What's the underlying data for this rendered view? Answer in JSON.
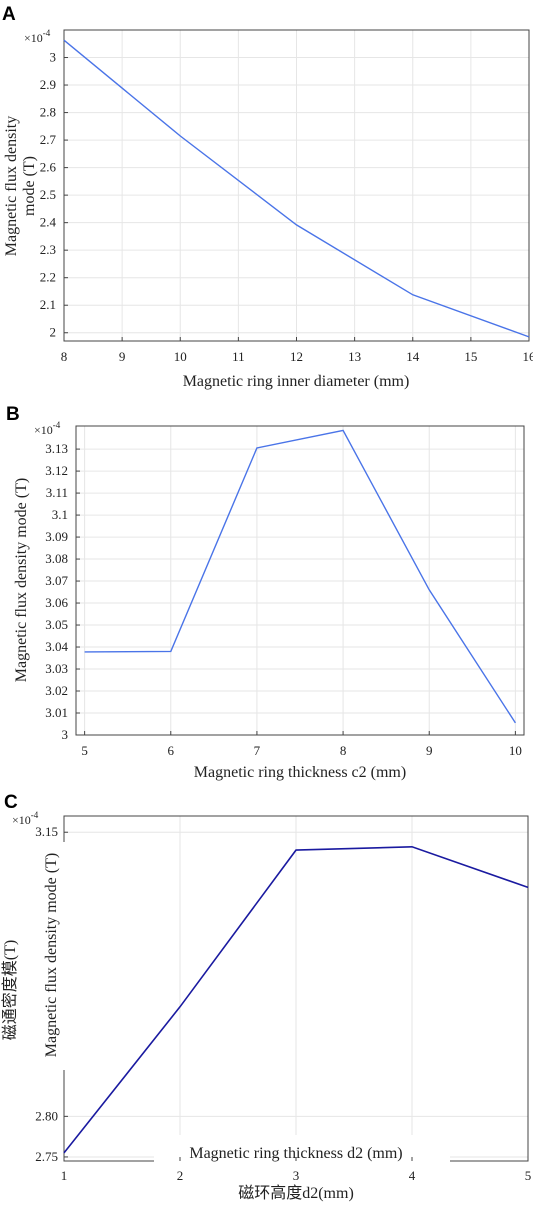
{
  "chart_data": [
    {
      "panel": "A",
      "type": "line",
      "multiplier": "×10",
      "multiplier_exp": "-4",
      "xlabel": "Magnetic ring inner diameter (mm)",
      "ylabel_lines": [
        "Magnetic flux density",
        "mode (T)"
      ],
      "x_ticks": [
        "8",
        "9",
        "10",
        "11",
        "12",
        "13",
        "14",
        "15",
        "16"
      ],
      "y_ticks": [
        "2",
        "2.1",
        "2.2",
        "2.3",
        "2.4",
        "2.5",
        "2.6",
        "2.7",
        "2.8",
        "2.9",
        "3"
      ],
      "xlim": [
        8,
        16
      ],
      "ylim": [
        1.97,
        3.1
      ],
      "grid": true,
      "line_color": "#4a74e8",
      "series": [
        {
          "x": [
            8,
            10,
            12,
            14,
            16
          ],
          "y": [
            3.063,
            2.715,
            2.392,
            2.138,
            1.985
          ]
        }
      ]
    },
    {
      "panel": "B",
      "type": "line",
      "multiplier": "×10",
      "multiplier_exp": "-4",
      "xlabel": "Magnetic ring thickness c2 (mm)",
      "ylabel_lines": [
        "Magnetic flux density mode (T)"
      ],
      "x_ticks": [
        "5",
        "6",
        "7",
        "8",
        "9",
        "10"
      ],
      "y_ticks": [
        "3",
        "3.01",
        "3.02",
        "3.03",
        "3.04",
        "3.05",
        "3.06",
        "3.07",
        "3.08",
        "3.09",
        "3.1",
        "3.11",
        "3.12",
        "3.13"
      ],
      "xlim": [
        4.9,
        10.1
      ],
      "ylim": [
        3.0,
        3.1405
      ],
      "grid": true,
      "line_color": "#4a74e8",
      "series": [
        {
          "x": [
            5,
            6,
            7,
            8,
            9,
            10
          ],
          "y": [
            3.0378,
            3.038,
            3.1305,
            3.1385,
            3.066,
            3.0055
          ]
        }
      ]
    },
    {
      "panel": "C",
      "type": "line",
      "multiplier": "×10",
      "multiplier_exp": "-4",
      "xlabel": "磁环高度d2(mm)",
      "xlabel_overlay": "Magnetic ring thickness d2 (mm)",
      "ylabel_lines": [
        "磁通密度模(T)"
      ],
      "ylabel_overlay": "Magnetic flux density mode (T)",
      "x_ticks": [
        "1",
        "2",
        "3",
        "4",
        "5"
      ],
      "y_ticks": [
        "2.75",
        "2.80",
        "3.15"
      ],
      "xlim": [
        1,
        5
      ],
      "ylim": [
        2.745,
        3.17
      ],
      "grid": true,
      "line_color": "#1a1aa0",
      "series": [
        {
          "x": [
            1,
            2,
            3,
            4,
            5
          ],
          "y": [
            2.755,
            2.935,
            3.128,
            3.132,
            3.082
          ]
        }
      ]
    }
  ]
}
